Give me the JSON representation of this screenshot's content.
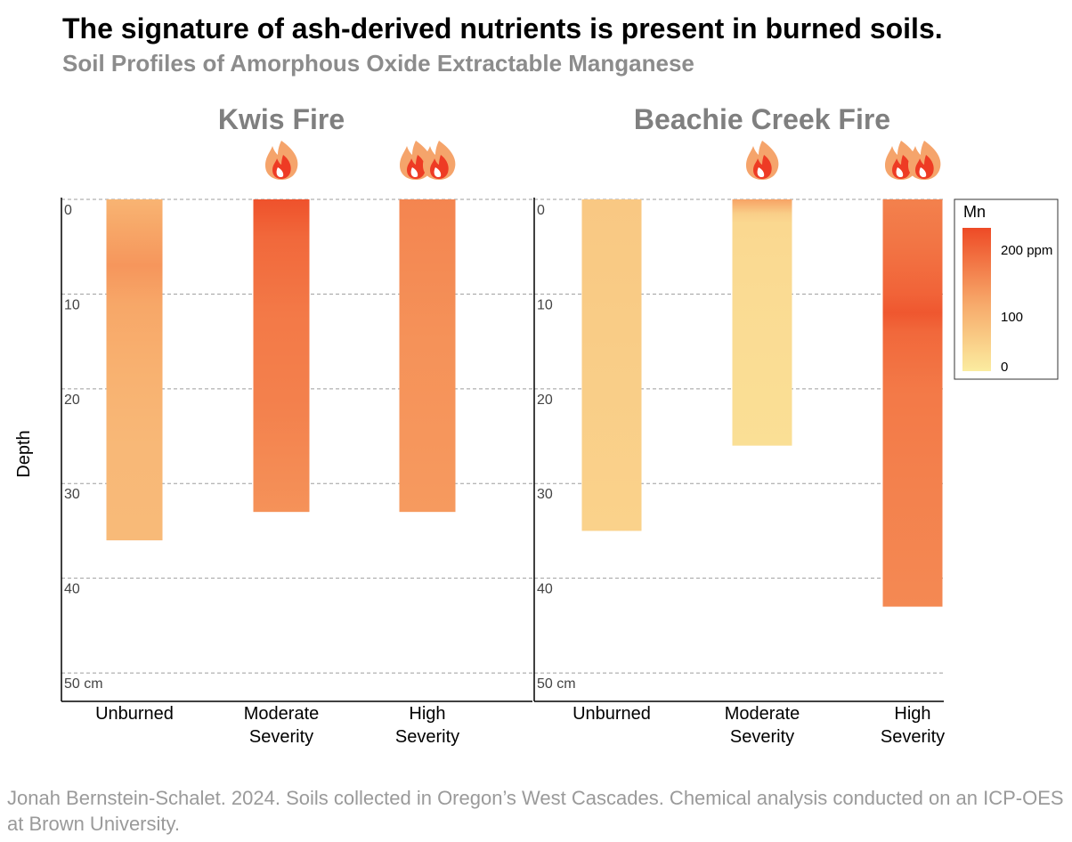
{
  "title": "The signature of ash-derived nutrients is present in burned soils.",
  "subtitle": "Soil Profiles of Amorphous Oxide Extractable Manganese",
  "caption": "Jonah Bernstein-Schalet. 2024.  Soils collected in Oregon’s West Cascades. Chemical analysis conducted on an ICP-OES at Brown University.",
  "colors": {
    "low": "#fbeca0",
    "mid": "#f7a567",
    "high": "#ee4a26",
    "grid": "#9e9e9e",
    "panel_title": "#7f7f7f"
  },
  "chart_data": {
    "type": "heatmap",
    "ylabel": "Depth",
    "y_ticks": [
      "0",
      "10",
      "20",
      "30",
      "40",
      "50 cm"
    ],
    "y_tick_values": [
      0,
      10,
      20,
      30,
      40,
      50
    ],
    "ylim": [
      0,
      53
    ],
    "y_inverted": true,
    "grid": "horizontal dashed",
    "legend": {
      "title": "Mn",
      "labels": [
        "200 ppm",
        "100",
        "0"
      ],
      "values": [
        200,
        100,
        0
      ],
      "range": [
        0,
        215
      ],
      "placement": "right"
    },
    "panels": [
      {
        "title": "Kwis Fire",
        "categories": [
          "Unburned",
          "Moderate Severity",
          "High Severity"
        ],
        "category_lines": [
          [
            "Unburned"
          ],
          [
            "Moderate",
            "Severity"
          ],
          [
            "High",
            "Severity"
          ]
        ],
        "fire_icons": [
          0,
          1,
          2
        ],
        "profiles": [
          {
            "category": "Unburned",
            "max_depth": 36,
            "depths": [
              0,
              3,
              7,
              11,
              18,
              26,
              36
            ],
            "mn": [
              85,
              105,
              125,
              105,
              90,
              78,
              75
            ]
          },
          {
            "category": "Moderate Severity",
            "max_depth": 33,
            "depths": [
              0,
              1,
              4,
              12,
              22,
              33
            ],
            "mn": [
              205,
              200,
              180,
              160,
              150,
              130
            ]
          },
          {
            "category": "High Severity",
            "max_depth": 33,
            "depths": [
              0,
              5,
              15,
              25,
              33
            ],
            "mn": [
              145,
              140,
              130,
              125,
              120
            ]
          }
        ]
      },
      {
        "title": "Beachie Creek Fire",
        "categories": [
          "Unburned",
          "Moderate Severity",
          "High Severity"
        ],
        "category_lines": [
          [
            "Unburned"
          ],
          [
            "Moderate",
            "Severity"
          ],
          [
            "High",
            "Severity"
          ]
        ],
        "fire_icons": [
          0,
          1,
          2
        ],
        "profiles": [
          {
            "category": "Unburned",
            "max_depth": 35,
            "depths": [
              0,
              10,
              20,
              35
            ],
            "mn": [
              55,
              50,
              45,
              40
            ]
          },
          {
            "category": "Moderate Severity",
            "max_depth": 26,
            "depths": [
              0,
              1.5,
              2.5,
              10,
              26
            ],
            "mn": [
              110,
              45,
              30,
              25,
              20
            ]
          },
          {
            "category": "High Severity",
            "max_depth": 43,
            "depths": [
              0,
              5,
              10,
              12,
              14,
              20,
              30,
              43
            ],
            "mn": [
              150,
              165,
              185,
              200,
              180,
              160,
              150,
              140
            ]
          }
        ]
      }
    ]
  }
}
